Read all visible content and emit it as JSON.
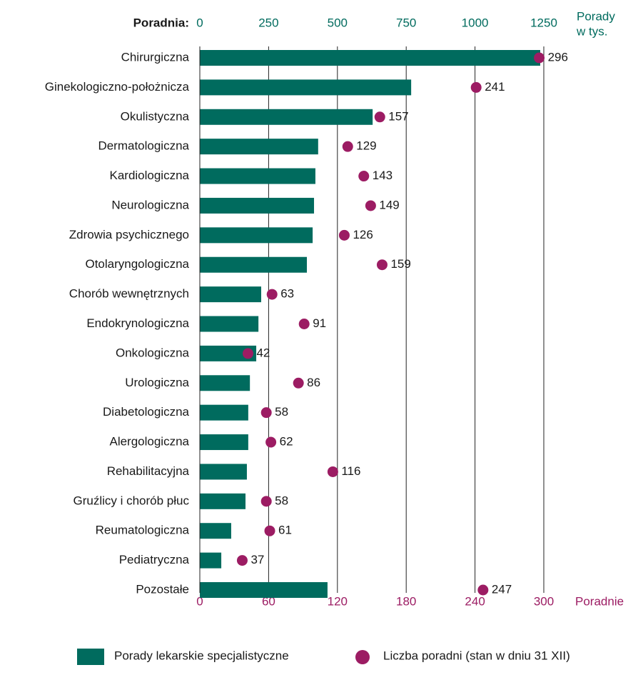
{
  "chart_data": {
    "type": "bar",
    "y_title": "Poradnia:",
    "xlabel_lines": [
      "Porady",
      "w tys."
    ],
    "x2label": "Poradnie",
    "categories": [
      "Chirurgiczna",
      "Ginekologiczno-położnicza",
      "Okulistyczna",
      "Dermatologiczna",
      "Kardiologiczna",
      "Neurologiczna",
      "Zdrowia psychicznego",
      "Otolaryngologiczna",
      "Chorób wewnętrznych",
      "Endokrynologiczna",
      "Onkologiczna",
      "Urologiczna",
      "Diabetologiczna",
      "Alergologiczna",
      "Rehabilitacyjna",
      "Gruźlicy i chorób płuc",
      "Reumatologiczna",
      "Pediatryczna",
      "Pozostałe"
    ],
    "series": [
      {
        "name": "Porady lekarskie specjalistyczne",
        "color": "#006b5e",
        "values": [
          1237,
          768,
          628,
          430,
          420,
          415,
          410,
          389,
          223,
          213,
          205,
          182,
          176,
          176,
          171,
          166,
          114,
          78,
          464
        ]
      },
      {
        "name": "Liczba poradni (stan w dniu 31 XII)",
        "color": "#9c1c63",
        "axis": "x2",
        "values": [
          296,
          241,
          157,
          129,
          143,
          149,
          126,
          159,
          63,
          91,
          42,
          86,
          58,
          62,
          116,
          58,
          61,
          37,
          247
        ]
      }
    ],
    "xlim": [
      0,
      1250
    ],
    "xticks": [
      0,
      250,
      500,
      750,
      1000,
      1250
    ],
    "x2lim": [
      0,
      300
    ],
    "x2ticks": [
      0,
      60,
      120,
      180,
      240,
      300
    ],
    "grid": true
  }
}
